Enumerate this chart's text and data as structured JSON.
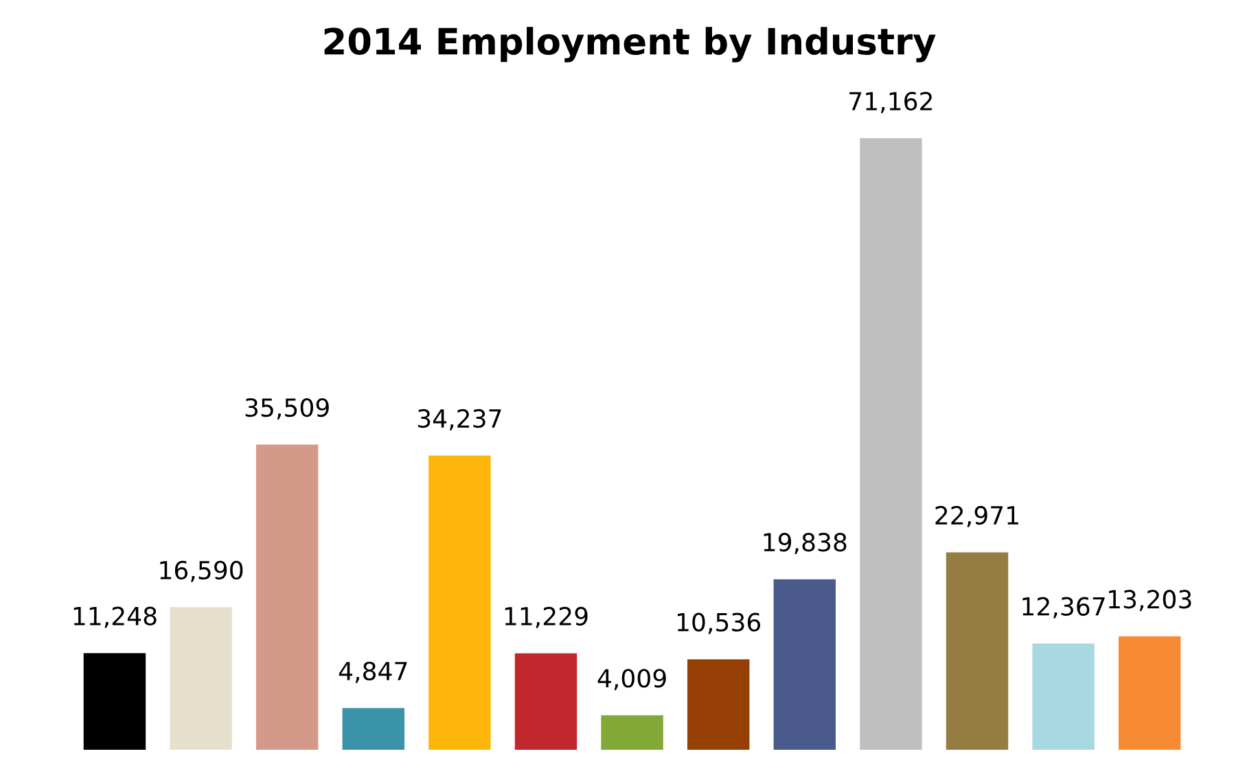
{
  "chart_data": {
    "type": "bar",
    "title": "2014 Employment by Industry",
    "categories": [
      null,
      null,
      null,
      null,
      null,
      null,
      null,
      null,
      null,
      null,
      null,
      null,
      null
    ],
    "values": [
      11248,
      16590,
      35509,
      4847,
      34237,
      11229,
      4009,
      10536,
      19838,
      71162,
      22971,
      12367,
      13203
    ],
    "colors": [
      "#000000",
      "#e6dfcc",
      "#d49a89",
      "#3a93a8",
      "#ffb60b",
      "#c0282d",
      "#82a935",
      "#963f05",
      "#4a5a8c",
      "#bfbfbf",
      "#957d42",
      "#a8d8e2",
      "#f68b33"
    ],
    "value_labels": [
      "11,248",
      "16,590",
      "35,509",
      "4,847",
      "34,237",
      "11,229",
      "4,009",
      "10,536",
      "19,838",
      "71,162",
      "22,971",
      "12,367",
      "13,203"
    ],
    "grid": false,
    "legend": false
  }
}
